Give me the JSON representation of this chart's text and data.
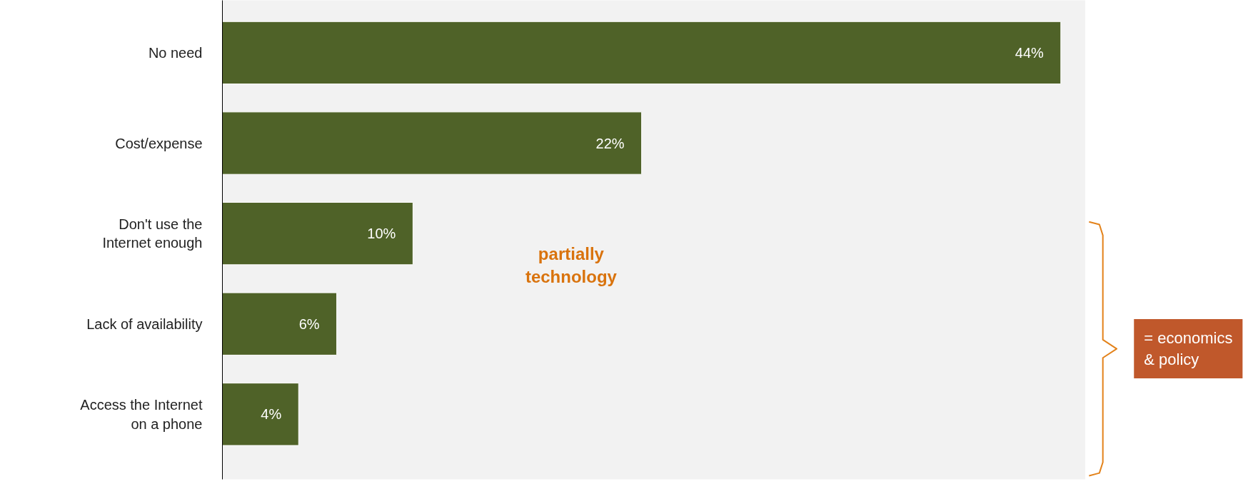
{
  "chart_data": {
    "type": "bar",
    "orientation": "horizontal",
    "tick_labels": "y",
    "categories": [
      "No need",
      "Cost/expense",
      "Don't use the Internet enough",
      "Lack of availability",
      "Access the Internet on a phone"
    ],
    "values": [
      44,
      22,
      10,
      6,
      4
    ],
    "value_labels": [
      "44%",
      "22%",
      "10%",
      "6%",
      "4%"
    ],
    "color": "#4f6228",
    "xlim": [
      0,
      45.3
    ],
    "annotations": [
      "partially technology",
      "= economics & policy"
    ]
  }
}
